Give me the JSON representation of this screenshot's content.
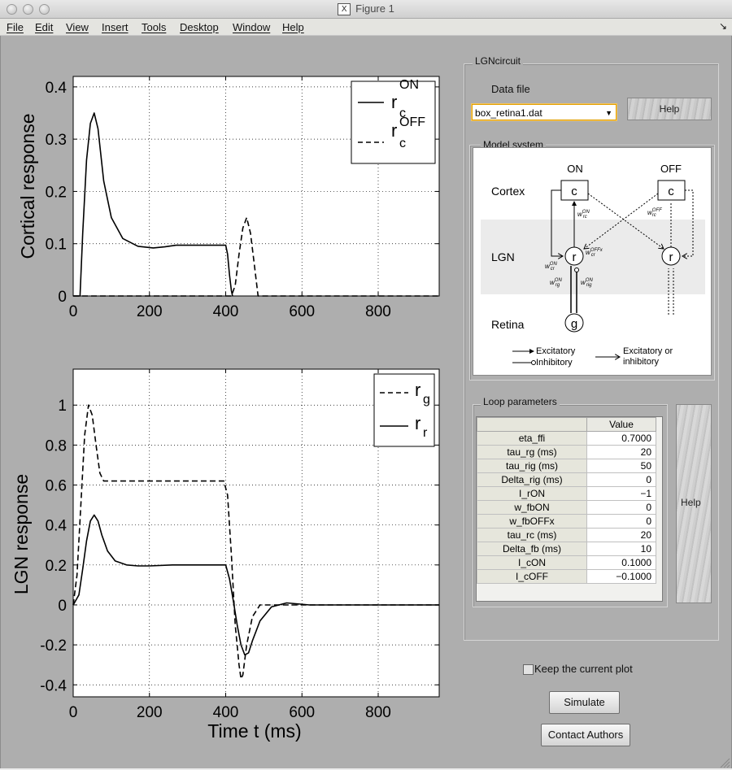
{
  "window": {
    "title": "Figure 1"
  },
  "menu": [
    "File",
    "Edit",
    "View",
    "Insert",
    "Tools",
    "Desktop",
    "Window",
    "Help"
  ],
  "top_plot": {
    "ylabel": "Cortical response",
    "xticks": [
      "0",
      "200",
      "400",
      "600",
      "800"
    ],
    "yticks": [
      "0",
      "0.1",
      "0.2",
      "0.3",
      "0.4"
    ],
    "legend": [
      {
        "base": "r",
        "sub": "c",
        "sup": "ON",
        "style": "solid"
      },
      {
        "base": "r",
        "sub": "c",
        "sup": "OFF",
        "style": "dashed"
      }
    ]
  },
  "bottom_plot": {
    "ylabel": "LGN response",
    "xlabel": "Time t (ms)",
    "xticks": [
      "0",
      "200",
      "400",
      "600",
      "800"
    ],
    "yticks": [
      "1",
      "0.8",
      "0.6",
      "0.4",
      "0.2",
      "0",
      "-0.2",
      "-0.4"
    ],
    "legend": [
      {
        "base": "r",
        "sub": "g",
        "style": "dashed"
      },
      {
        "base": "r",
        "sub": "r",
        "style": "solid"
      }
    ]
  },
  "chart_data": [
    {
      "type": "line",
      "xlim": [
        0,
        960
      ],
      "ylim": [
        0,
        0.42
      ],
      "grid": true,
      "legend_position": "top-right",
      "series": [
        {
          "name": "r_c^ON",
          "style": "solid",
          "x": [
            0,
            18,
            25,
            35,
            45,
            55,
            65,
            80,
            100,
            130,
            170,
            210,
            240,
            270,
            320,
            370,
            400,
            405,
            410,
            415,
            418
          ],
          "y": [
            0,
            0,
            0.12,
            0.26,
            0.33,
            0.35,
            0.32,
            0.22,
            0.15,
            0.11,
            0.095,
            0.092,
            0.094,
            0.097,
            0.097,
            0.097,
            0.097,
            0.08,
            0.04,
            0.01,
            0
          ]
        },
        {
          "name": "r_c^OFF",
          "style": "dashed",
          "x": [
            0,
            415,
            425,
            435,
            445,
            455,
            465,
            475,
            485,
            960
          ],
          "y": [
            0,
            0,
            0.02,
            0.08,
            0.13,
            0.15,
            0.12,
            0.06,
            0,
            0
          ]
        }
      ]
    },
    {
      "type": "line",
      "xlim": [
        0,
        960
      ],
      "ylim": [
        -0.46,
        1.18
      ],
      "grid": true,
      "legend_position": "top-right",
      "series": [
        {
          "name": "r_g",
          "style": "dashed",
          "x": [
            0,
            10,
            20,
            30,
            40,
            50,
            60,
            70,
            80,
            120,
            200,
            300,
            395,
            405,
            415,
            425,
            435,
            440,
            445,
            455,
            470,
            490,
            520,
            560,
            620,
            700,
            960
          ],
          "y": [
            0,
            0.15,
            0.5,
            0.85,
            1.0,
            0.95,
            0.8,
            0.66,
            0.62,
            0.62,
            0.62,
            0.62,
            0.62,
            0.55,
            0.25,
            -0.1,
            -0.3,
            -0.37,
            -0.35,
            -0.2,
            -0.06,
            0,
            0,
            0,
            0,
            0,
            0
          ]
        },
        {
          "name": "r_r",
          "style": "solid",
          "x": [
            0,
            15,
            25,
            35,
            45,
            55,
            65,
            75,
            90,
            110,
            140,
            170,
            200,
            260,
            300,
            400,
            410,
            420,
            430,
            440,
            450,
            460,
            470,
            490,
            520,
            560,
            620,
            960
          ],
          "y": [
            0,
            0.05,
            0.18,
            0.32,
            0.42,
            0.45,
            0.42,
            0.35,
            0.27,
            0.22,
            0.2,
            0.195,
            0.195,
            0.2,
            0.2,
            0.2,
            0.13,
            0.02,
            -0.1,
            -0.2,
            -0.25,
            -0.24,
            -0.18,
            -0.08,
            -0.01,
            0.01,
            0,
            0
          ]
        }
      ]
    }
  ],
  "lgn_panel": {
    "title": "LGNcircuit",
    "data_file_label": "Data file",
    "data_file_value": "box_retina1.dat",
    "help_label": "Help"
  },
  "model_system": {
    "title": "Model system",
    "on": "ON",
    "off": "OFF",
    "cortex": "Cortex",
    "lgn": "LGN",
    "retina": "Retina",
    "c": "c",
    "r": "r",
    "g": "g",
    "legend_excitatory": "Excitatory",
    "legend_inhibitory": "Inhibitory",
    "legend_either_1": "Excitatory or",
    "legend_either_2": "inhibitory",
    "w_rc_on": "w",
    "w_rc_on_sup": "ON",
    "w_rc_on_sub": "rc",
    "w_rc_off": "w",
    "w_rc_off_sup": "OFF",
    "w_rc_off_sub": "rc",
    "w_cr_on": "w",
    "w_cr_on_sup": "ON",
    "w_cr_on_sub": "cr",
    "w_cr_offx": "w",
    "w_cr_offx_sup": "OFFx",
    "w_cr_offx_sub": "cr",
    "w_rg_on": "w",
    "w_rg_on_sup": "ON",
    "w_rg_on_sub": "rg",
    "w_rig_on": "w",
    "w_rig_on_sup": "ON",
    "w_rig_on_sub": "rig"
  },
  "loop_parameters": {
    "title": "Loop parameters",
    "value_header": "Value",
    "rows": [
      {
        "name": "eta_ffi",
        "value": "0.7000"
      },
      {
        "name": "tau_rg (ms)",
        "value": "20"
      },
      {
        "name": "tau_rig (ms)",
        "value": "50"
      },
      {
        "name": "Delta_rig (ms)",
        "value": "0"
      },
      {
        "name": "I_rON",
        "value": "−1"
      },
      {
        "name": "w_fbON",
        "value": "0"
      },
      {
        "name": "w_fbOFFx",
        "value": "0"
      },
      {
        "name": "tau_rc (ms)",
        "value": "20"
      },
      {
        "name": "Delta_fb (ms)",
        "value": "10"
      },
      {
        "name": "I_cON",
        "value": "0.1000"
      },
      {
        "name": "I_cOFF",
        "value": "−0.1000"
      }
    ],
    "help_label": "Help"
  },
  "controls": {
    "keep_plot_label": "Keep the current plot",
    "simulate_label": "Simulate",
    "contact_label": "Contact Authors"
  }
}
